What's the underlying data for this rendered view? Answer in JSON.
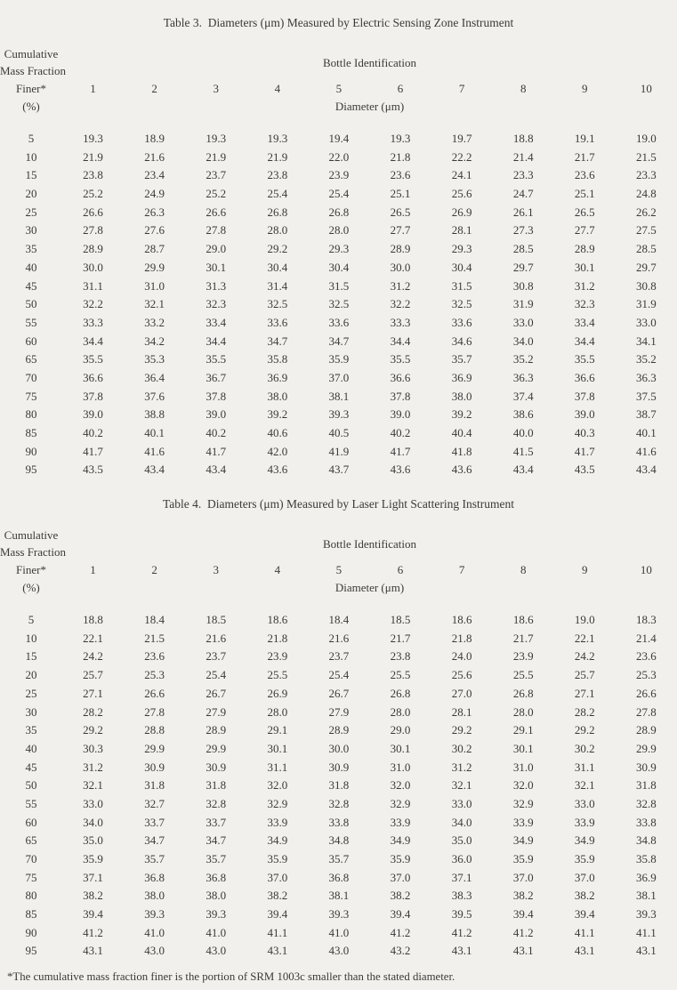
{
  "page": {
    "background": "#f1f0ec",
    "text_color": "#3a3a3a"
  },
  "tables": [
    {
      "title": "Table 3.  Diameters (μm) Measured by Electric Sensing Zone Instrument",
      "row_header_lines": [
        "Cumulative",
        "Mass Fraction",
        "Finer*",
        "(%)"
      ],
      "col_group_label": "Bottle Identification",
      "col_subgroup_label": "Diameter (μm)",
      "columns": [
        "1",
        "2",
        "3",
        "4",
        "5",
        "6",
        "7",
        "8",
        "9",
        "10"
      ],
      "rows": [
        {
          "pct": "5",
          "values": [
            "19.3",
            "18.9",
            "19.3",
            "19.3",
            "19.4",
            "19.3",
            "19.7",
            "18.8",
            "19.1",
            "19.0"
          ]
        },
        {
          "pct": "10",
          "values": [
            "21.9",
            "21.6",
            "21.9",
            "21.9",
            "22.0",
            "21.8",
            "22.2",
            "21.4",
            "21.7",
            "21.5"
          ]
        },
        {
          "pct": "15",
          "values": [
            "23.8",
            "23.4",
            "23.7",
            "23.8",
            "23.9",
            "23.6",
            "24.1",
            "23.3",
            "23.6",
            "23.3"
          ]
        },
        {
          "pct": "20",
          "values": [
            "25.2",
            "24.9",
            "25.2",
            "25.4",
            "25.4",
            "25.1",
            "25.6",
            "24.7",
            "25.1",
            "24.8"
          ]
        },
        {
          "pct": "25",
          "values": [
            "26.6",
            "26.3",
            "26.6",
            "26.8",
            "26.8",
            "26.5",
            "26.9",
            "26.1",
            "26.5",
            "26.2"
          ]
        },
        {
          "pct": "30",
          "values": [
            "27.8",
            "27.6",
            "27.8",
            "28.0",
            "28.0",
            "27.7",
            "28.1",
            "27.3",
            "27.7",
            "27.5"
          ]
        },
        {
          "pct": "35",
          "values": [
            "28.9",
            "28.7",
            "29.0",
            "29.2",
            "29.3",
            "28.9",
            "29.3",
            "28.5",
            "28.9",
            "28.5"
          ]
        },
        {
          "pct": "40",
          "values": [
            "30.0",
            "29.9",
            "30.1",
            "30.4",
            "30.4",
            "30.0",
            "30.4",
            "29.7",
            "30.1",
            "29.7"
          ]
        },
        {
          "pct": "45",
          "values": [
            "31.1",
            "31.0",
            "31.3",
            "31.4",
            "31.5",
            "31.2",
            "31.5",
            "30.8",
            "31.2",
            "30.8"
          ]
        },
        {
          "pct": "50",
          "values": [
            "32.2",
            "32.1",
            "32.3",
            "32.5",
            "32.5",
            "32.2",
            "32.5",
            "31.9",
            "32.3",
            "31.9"
          ]
        },
        {
          "pct": "55",
          "values": [
            "33.3",
            "33.2",
            "33.4",
            "33.6",
            "33.6",
            "33.3",
            "33.6",
            "33.0",
            "33.4",
            "33.0"
          ]
        },
        {
          "pct": "60",
          "values": [
            "34.4",
            "34.2",
            "34.4",
            "34.7",
            "34.7",
            "34.4",
            "34.6",
            "34.0",
            "34.4",
            "34.1"
          ]
        },
        {
          "pct": "65",
          "values": [
            "35.5",
            "35.3",
            "35.5",
            "35.8",
            "35.9",
            "35.5",
            "35.7",
            "35.2",
            "35.5",
            "35.2"
          ]
        },
        {
          "pct": "70",
          "values": [
            "36.6",
            "36.4",
            "36.7",
            "36.9",
            "37.0",
            "36.6",
            "36.9",
            "36.3",
            "36.6",
            "36.3"
          ]
        },
        {
          "pct": "75",
          "values": [
            "37.8",
            "37.6",
            "37.8",
            "38.0",
            "38.1",
            "37.8",
            "38.0",
            "37.4",
            "37.8",
            "37.5"
          ]
        },
        {
          "pct": "80",
          "values": [
            "39.0",
            "38.8",
            "39.0",
            "39.2",
            "39.3",
            "39.0",
            "39.2",
            "38.6",
            "39.0",
            "38.7"
          ]
        },
        {
          "pct": "85",
          "values": [
            "40.2",
            "40.1",
            "40.2",
            "40.6",
            "40.5",
            "40.2",
            "40.4",
            "40.0",
            "40.3",
            "40.1"
          ]
        },
        {
          "pct": "90",
          "values": [
            "41.7",
            "41.6",
            "41.7",
            "42.0",
            "41.9",
            "41.7",
            "41.8",
            "41.5",
            "41.7",
            "41.6"
          ]
        },
        {
          "pct": "95",
          "values": [
            "43.5",
            "43.4",
            "43.4",
            "43.6",
            "43.7",
            "43.6",
            "43.6",
            "43.4",
            "43.5",
            "43.4"
          ]
        }
      ]
    },
    {
      "title": "Table 4.  Diameters (μm) Measured by Laser Light Scattering Instrument",
      "row_header_lines": [
        "Cumulative",
        "Mass Fraction",
        "Finer*",
        "(%)"
      ],
      "col_group_label": "Bottle Identification",
      "col_subgroup_label": "Diameter (μm)",
      "columns": [
        "1",
        "2",
        "3",
        "4",
        "5",
        "6",
        "7",
        "8",
        "9",
        "10"
      ],
      "rows": [
        {
          "pct": "5",
          "values": [
            "18.8",
            "18.4",
            "18.5",
            "18.6",
            "18.4",
            "18.5",
            "18.6",
            "18.6",
            "19.0",
            "18.3"
          ]
        },
        {
          "pct": "10",
          "values": [
            "22.1",
            "21.5",
            "21.6",
            "21.8",
            "21.6",
            "21.7",
            "21.8",
            "21.7",
            "22.1",
            "21.4"
          ]
        },
        {
          "pct": "15",
          "values": [
            "24.2",
            "23.6",
            "23.7",
            "23.9",
            "23.7",
            "23.8",
            "24.0",
            "23.9",
            "24.2",
            "23.6"
          ]
        },
        {
          "pct": "20",
          "values": [
            "25.7",
            "25.3",
            "25.4",
            "25.5",
            "25.4",
            "25.5",
            "25.6",
            "25.5",
            "25.7",
            "25.3"
          ]
        },
        {
          "pct": "25",
          "values": [
            "27.1",
            "26.6",
            "26.7",
            "26.9",
            "26.7",
            "26.8",
            "27.0",
            "26.8",
            "27.1",
            "26.6"
          ]
        },
        {
          "pct": "30",
          "values": [
            "28.2",
            "27.8",
            "27.9",
            "28.0",
            "27.9",
            "28.0",
            "28.1",
            "28.0",
            "28.2",
            "27.8"
          ]
        },
        {
          "pct": "35",
          "values": [
            "29.2",
            "28.8",
            "28.9",
            "29.1",
            "28.9",
            "29.0",
            "29.2",
            "29.1",
            "29.2",
            "28.9"
          ]
        },
        {
          "pct": "40",
          "values": [
            "30.3",
            "29.9",
            "29.9",
            "30.1",
            "30.0",
            "30.1",
            "30.2",
            "30.1",
            "30.2",
            "29.9"
          ]
        },
        {
          "pct": "45",
          "values": [
            "31.2",
            "30.9",
            "30.9",
            "31.1",
            "30.9",
            "31.0",
            "31.2",
            "31.0",
            "31.1",
            "30.9"
          ]
        },
        {
          "pct": "50",
          "values": [
            "32.1",
            "31.8",
            "31.8",
            "32.0",
            "31.8",
            "32.0",
            "32.1",
            "32.0",
            "32.1",
            "31.8"
          ]
        },
        {
          "pct": "55",
          "values": [
            "33.0",
            "32.7",
            "32.8",
            "32.9",
            "32.8",
            "32.9",
            "33.0",
            "32.9",
            "33.0",
            "32.8"
          ]
        },
        {
          "pct": "60",
          "values": [
            "34.0",
            "33.7",
            "33.7",
            "33.9",
            "33.8",
            "33.9",
            "34.0",
            "33.9",
            "33.9",
            "33.8"
          ]
        },
        {
          "pct": "65",
          "values": [
            "35.0",
            "34.7",
            "34.7",
            "34.9",
            "34.8",
            "34.9",
            "35.0",
            "34.9",
            "34.9",
            "34.8"
          ]
        },
        {
          "pct": "70",
          "values": [
            "35.9",
            "35.7",
            "35.7",
            "35.9",
            "35.7",
            "35.9",
            "36.0",
            "35.9",
            "35.9",
            "35.8"
          ]
        },
        {
          "pct": "75",
          "values": [
            "37.1",
            "36.8",
            "36.8",
            "37.0",
            "36.8",
            "37.0",
            "37.1",
            "37.0",
            "37.0",
            "36.9"
          ]
        },
        {
          "pct": "80",
          "values": [
            "38.2",
            "38.0",
            "38.0",
            "38.2",
            "38.1",
            "38.2",
            "38.3",
            "38.2",
            "38.2",
            "38.1"
          ]
        },
        {
          "pct": "85",
          "values": [
            "39.4",
            "39.3",
            "39.3",
            "39.4",
            "39.3",
            "39.4",
            "39.5",
            "39.4",
            "39.4",
            "39.3"
          ]
        },
        {
          "pct": "90",
          "values": [
            "41.2",
            "41.0",
            "41.0",
            "41.1",
            "41.0",
            "41.2",
            "41.2",
            "41.2",
            "41.1",
            "41.1"
          ]
        },
        {
          "pct": "95",
          "values": [
            "43.1",
            "43.0",
            "43.0",
            "43.1",
            "43.0",
            "43.2",
            "43.1",
            "43.1",
            "43.1",
            "43.1"
          ]
        }
      ]
    }
  ],
  "footnote": "*The cumulative mass fraction finer is the portion of SRM 1003c smaller than the stated diameter."
}
